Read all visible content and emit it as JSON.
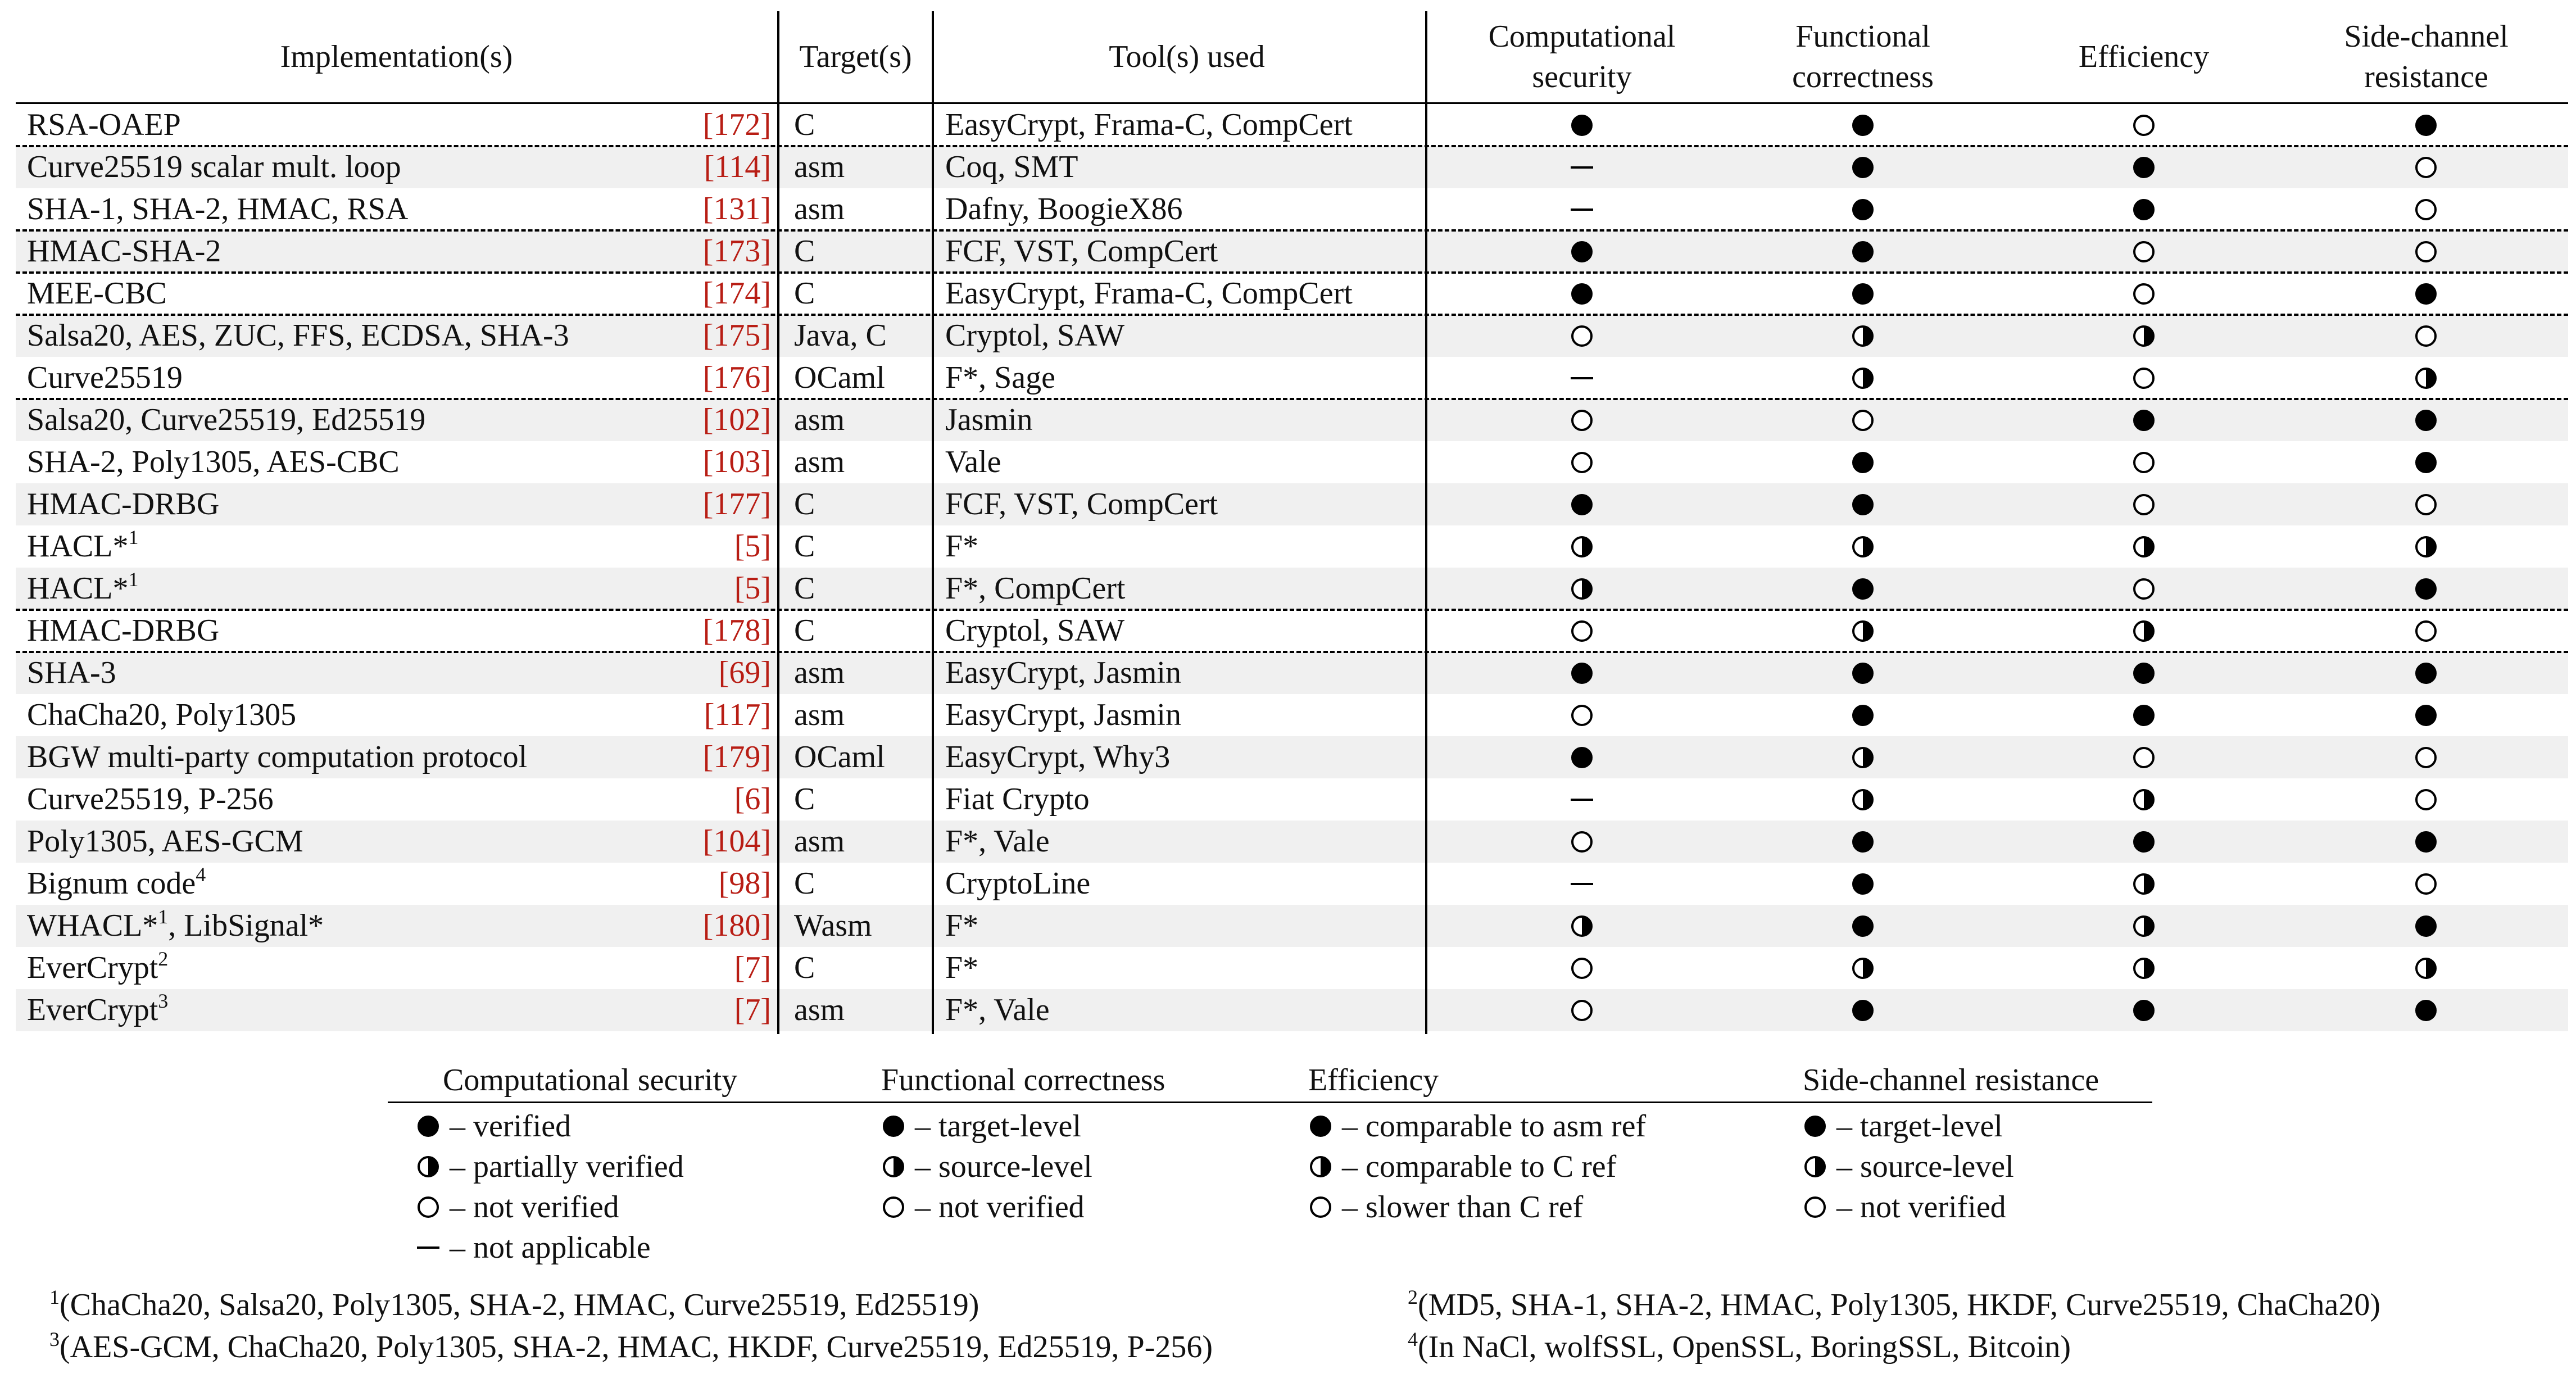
{
  "headers": {
    "implementation": "Implementation(s)",
    "target": "Target(s)",
    "tools": "Tool(s) used",
    "comp_security": [
      "Computational",
      "security"
    ],
    "func_correctness": [
      "Functional",
      "correctness"
    ],
    "efficiency": "Efficiency",
    "side_channel": [
      "Side-channel",
      "resistance"
    ]
  },
  "rows": [
    {
      "impl": "RSA-OAEP",
      "sup": "",
      "ref": "[172]",
      "target": "C",
      "tools": "EasyCrypt, Frama-C, CompCert",
      "cs": "full",
      "fc": "full",
      "ef": "empty",
      "sc": "full",
      "shade": false,
      "dash_top": false
    },
    {
      "impl": "Curve25519 scalar mult. loop",
      "sup": "",
      "ref": "[114]",
      "target": "asm",
      "tools": "Coq, SMT",
      "cs": "na",
      "fc": "full",
      "ef": "full",
      "sc": "empty",
      "shade": true,
      "dash_top": true
    },
    {
      "impl": "SHA-1, SHA-2, HMAC, RSA",
      "sup": "",
      "ref": "[131]",
      "target": "asm",
      "tools": "Dafny, BoogieX86",
      "cs": "na",
      "fc": "full",
      "ef": "full",
      "sc": "empty",
      "shade": false,
      "dash_top": false
    },
    {
      "impl": "HMAC-SHA-2",
      "sup": "",
      "ref": "[173]",
      "target": "C",
      "tools": "FCF, VST, CompCert",
      "cs": "full",
      "fc": "full",
      "ef": "empty",
      "sc": "empty",
      "shade": true,
      "dash_top": true
    },
    {
      "impl": "MEE-CBC",
      "sup": "",
      "ref": "[174]",
      "target": "C",
      "tools": "EasyCrypt, Frama-C, CompCert",
      "cs": "full",
      "fc": "full",
      "ef": "empty",
      "sc": "full",
      "shade": false,
      "dash_top": true
    },
    {
      "impl": "Salsa20, AES, ZUC, FFS, ECDSA, SHA-3",
      "sup": "",
      "ref": "[175]",
      "target": "Java, C",
      "tools": "Cryptol, SAW",
      "cs": "empty",
      "fc": "half",
      "ef": "half",
      "sc": "empty",
      "shade": true,
      "dash_top": true
    },
    {
      "impl": "Curve25519",
      "sup": "",
      "ref": "[176]",
      "target": "OCaml",
      "tools": "F*, Sage",
      "cs": "na",
      "fc": "half",
      "ef": "empty",
      "sc": "half",
      "shade": false,
      "dash_top": false
    },
    {
      "impl": "Salsa20, Curve25519, Ed25519",
      "sup": "",
      "ref": "[102]",
      "target": "asm",
      "tools": "Jasmin",
      "cs": "empty",
      "fc": "empty",
      "ef": "full",
      "sc": "full",
      "shade": true,
      "dash_top": true
    },
    {
      "impl": "SHA-2, Poly1305, AES-CBC",
      "sup": "",
      "ref": "[103]",
      "target": "asm",
      "tools": "Vale",
      "cs": "empty",
      "fc": "full",
      "ef": "empty",
      "sc": "full",
      "shade": false,
      "dash_top": false
    },
    {
      "impl": "HMAC-DRBG",
      "sup": "",
      "ref": "[177]",
      "target": "C",
      "tools": "FCF, VST, CompCert",
      "cs": "full",
      "fc": "full",
      "ef": "empty",
      "sc": "empty",
      "shade": true,
      "dash_top": false
    },
    {
      "impl": "HACL*",
      "sup": "1",
      "ref": "[5]",
      "target": "C",
      "tools": "F*",
      "cs": "half",
      "fc": "half",
      "ef": "half",
      "sc": "half",
      "shade": false,
      "dash_top": false
    },
    {
      "impl": "HACL*",
      "sup": "1",
      "ref": "[5]",
      "target": "C",
      "tools": "F*, CompCert",
      "cs": "half",
      "fc": "full",
      "ef": "empty",
      "sc": "full",
      "shade": true,
      "dash_top": false
    },
    {
      "impl": "HMAC-DRBG",
      "sup": "",
      "ref": "[178]",
      "target": "C",
      "tools": "Cryptol, SAW",
      "cs": "empty",
      "fc": "half",
      "ef": "half",
      "sc": "empty",
      "shade": false,
      "dash_top": true
    },
    {
      "impl": "SHA-3",
      "sup": "",
      "ref": "[69]",
      "target": "asm",
      "tools": "EasyCrypt, Jasmin",
      "cs": "full",
      "fc": "full",
      "ef": "full",
      "sc": "full",
      "shade": true,
      "dash_top": true
    },
    {
      "impl": "ChaCha20, Poly1305",
      "sup": "",
      "ref": "[117]",
      "target": "asm",
      "tools": "EasyCrypt, Jasmin",
      "cs": "empty",
      "fc": "full",
      "ef": "full",
      "sc": "full",
      "shade": false,
      "dash_top": false
    },
    {
      "impl": "BGW multi-party computation protocol",
      "sup": "",
      "ref": "[179]",
      "target": "OCaml",
      "tools": "EasyCrypt, Why3",
      "cs": "full",
      "fc": "half",
      "ef": "empty",
      "sc": "empty",
      "shade": true,
      "dash_top": false
    },
    {
      "impl": "Curve25519, P-256",
      "sup": "",
      "ref": "[6]",
      "target": "C",
      "tools": "Fiat Crypto",
      "cs": "na",
      "fc": "half",
      "ef": "half",
      "sc": "empty",
      "shade": false,
      "dash_top": false
    },
    {
      "impl": "Poly1305, AES-GCM",
      "sup": "",
      "ref": "[104]",
      "target": "asm",
      "tools": "F*, Vale",
      "cs": "empty",
      "fc": "full",
      "ef": "full",
      "sc": "full",
      "shade": true,
      "dash_top": false
    },
    {
      "impl": "Bignum code",
      "sup": "4",
      "ref": "[98]",
      "target": "C",
      "tools": "CryptoLine",
      "cs": "na",
      "fc": "full",
      "ef": "half",
      "sc": "empty",
      "shade": false,
      "dash_top": false
    },
    {
      "impl": "WHACL*",
      "sup": "1",
      "impl2": ", LibSignal*",
      "ref": "[180]",
      "target": "Wasm",
      "tools": "F*",
      "cs": "half",
      "fc": "full",
      "ef": "half",
      "sc": "full",
      "shade": true,
      "dash_top": false
    },
    {
      "impl": "EverCrypt",
      "sup": "2",
      "ref": "[7]",
      "target": "C",
      "tools": "F*",
      "cs": "empty",
      "fc": "half",
      "ef": "half",
      "sc": "half",
      "shade": false,
      "dash_top": false
    },
    {
      "impl": "EverCrypt",
      "sup": "3",
      "ref": "[7]",
      "target": "asm",
      "tools": "F*, Vale",
      "cs": "empty",
      "fc": "full",
      "ef": "full",
      "sc": "full",
      "shade": true,
      "dash_top": false
    }
  ],
  "legend": {
    "columns": [
      {
        "title": "Computational security",
        "items": [
          {
            "sym": "full",
            "text": "– verified"
          },
          {
            "sym": "half",
            "text": "– partially verified"
          },
          {
            "sym": "empty",
            "text": "– not verified"
          },
          {
            "sym": "na",
            "text": "– not applicable"
          }
        ]
      },
      {
        "title": "Functional correctness",
        "items": [
          {
            "sym": "full",
            "text": "– target-level"
          },
          {
            "sym": "half",
            "text": "– source-level"
          },
          {
            "sym": "empty",
            "text": "– not verified"
          }
        ]
      },
      {
        "title": "Efficiency",
        "items": [
          {
            "sym": "full",
            "text": "– comparable to asm ref"
          },
          {
            "sym": "half",
            "text": "– comparable to C ref"
          },
          {
            "sym": "empty",
            "text": "– slower than C ref"
          }
        ]
      },
      {
        "title": "Side-channel resistance",
        "items": [
          {
            "sym": "full",
            "text": "– target-level"
          },
          {
            "sym": "half",
            "text": "– source-level"
          },
          {
            "sym": "empty",
            "text": "– not verified"
          }
        ]
      }
    ]
  },
  "footnotes": {
    "fn1": {
      "mark": "1",
      "text": "(ChaCha20, Salsa20, Poly1305, SHA-2, HMAC, Curve25519, Ed25519)"
    },
    "fn2": {
      "mark": "2",
      "text": "(MD5, SHA-1, SHA-2, HMAC, Poly1305, HKDF, Curve25519, ChaCha20)"
    },
    "fn3": {
      "mark": "3",
      "text": "(AES-GCM, ChaCha20, Poly1305, SHA-2, HMAC, HKDF, Curve25519, Ed25519, P-256)"
    },
    "fn4": {
      "mark": "4",
      "text": "(In NaCl, wolfSSL, OpenSSL, BoringSSL, Bitcoin)"
    }
  }
}
